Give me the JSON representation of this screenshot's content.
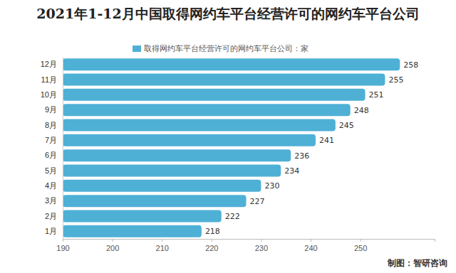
{
  "chart_data": {
    "type": "bar",
    "orientation": "horizontal",
    "title": "2021年1-12月中国取得网约车平台经营许可的网约车平台公司",
    "source": "制图：智研咨询",
    "categories": [
      "1月",
      "2月",
      "3月",
      "4月",
      "5月",
      "6月",
      "7月",
      "8月",
      "9月",
      "10月",
      "11月",
      "12月"
    ],
    "series": [
      {
        "name": "取得网约车平台经营许可的网约车平台公司：家",
        "color": "#4fb0d6",
        "values": [
          218,
          222,
          227,
          230,
          234,
          236,
          241,
          245,
          248,
          251,
          255,
          258
        ]
      }
    ],
    "xlim": [
      190,
      265
    ],
    "xticks": [
      190,
      200,
      210,
      220,
      230,
      240,
      250
    ],
    "grid": false,
    "legend": "top",
    "data_labels": true
  }
}
